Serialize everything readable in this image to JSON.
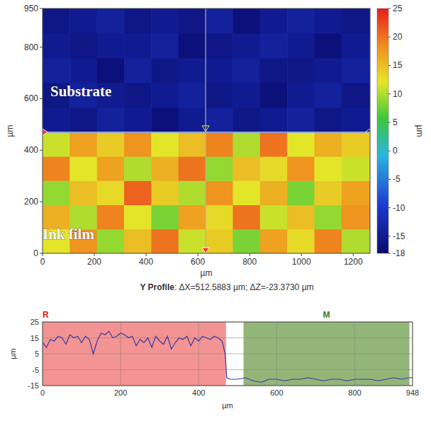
{
  "chart_data": [
    {
      "type": "heatmap",
      "xlabel": "µm",
      "ylabel": "µm",
      "xlim": [
        0,
        1265
      ],
      "ylim": [
        0,
        950
      ],
      "xticks": [
        0,
        200,
        400,
        600,
        800,
        1000,
        1200
      ],
      "yticks": [
        0,
        200,
        400,
        600,
        800,
        950
      ],
      "x_edges": [
        0,
        105,
        210,
        315,
        420,
        525,
        630,
        735,
        840,
        945,
        1050,
        1155,
        1265
      ],
      "y_edges": [
        0,
        94,
        188,
        282,
        376,
        470,
        566,
        662,
        758,
        854,
        950
      ],
      "cells": [
        [
          12,
          18,
          9,
          15,
          20,
          11,
          14,
          8,
          17,
          13,
          19,
          10
        ],
        [
          16,
          10,
          19,
          12,
          8,
          17,
          13,
          20,
          11,
          15,
          9,
          18
        ],
        [
          9,
          15,
          13,
          21,
          14,
          10,
          18,
          12,
          16,
          8,
          14,
          17
        ],
        [
          19,
          12,
          17,
          10,
          16,
          20,
          9,
          15,
          13,
          18,
          12,
          11
        ],
        [
          11,
          17,
          14,
          18,
          12,
          15,
          19,
          10,
          20,
          12,
          16,
          14
        ],
        [
          -15,
          -16,
          -14,
          -15,
          -17,
          -15,
          -14,
          -16,
          -15,
          -14,
          -16,
          -15
        ],
        [
          -16,
          -14,
          -15,
          -16,
          -15,
          -14,
          -16,
          -15,
          -17,
          -15,
          -14,
          -16
        ],
        [
          -14,
          -15,
          -17,
          -14,
          -16,
          -15,
          -15,
          -14,
          -16,
          -16,
          -15,
          -14
        ],
        [
          -15,
          -16,
          -15,
          -15,
          -14,
          -17,
          -16,
          -15,
          -14,
          -15,
          -17,
          -15
        ],
        [
          -16,
          -15,
          -14,
          -16,
          -15,
          -16,
          -14,
          -17,
          -15,
          -14,
          -15,
          -16
        ]
      ],
      "colorbar_label": "µm",
      "colorbar_range": [
        -18,
        25
      ],
      "colorbar_ticks": [
        25,
        20,
        15,
        10,
        5,
        0,
        -5,
        -10,
        -15,
        -18
      ],
      "profile_x": 630,
      "boundary_y": 470,
      "annotations": [
        {
          "text": "Substrate",
          "x": 30,
          "y": 610
        },
        {
          "text": "Ink film",
          "x": 0,
          "y": 55
        }
      ],
      "grid": false
    },
    {
      "type": "line",
      "title": "Y Profile: ΔX=512.5883 µm; ΔZ=-23.3730 µm",
      "xlabel": "µm",
      "ylabel": "µm",
      "xlim": [
        0,
        948
      ],
      "ylim": [
        -15,
        25
      ],
      "xticks": [
        0,
        200,
        400,
        600,
        800,
        948
      ],
      "yticks": [
        25,
        15,
        5,
        -5,
        -15
      ],
      "grid": true,
      "color": "#3a3aa0",
      "regions": [
        {
          "label": "R",
          "range": [
            0,
            470
          ],
          "color": "#f28080"
        },
        {
          "label": "M",
          "range": [
            515,
            940
          ],
          "color": "#7fa860"
        }
      ],
      "x": [
        0,
        10,
        20,
        30,
        40,
        50,
        60,
        70,
        80,
        90,
        100,
        110,
        120,
        130,
        140,
        150,
        160,
        170,
        180,
        190,
        200,
        210,
        220,
        230,
        240,
        250,
        260,
        270,
        280,
        290,
        300,
        310,
        320,
        330,
        340,
        350,
        360,
        370,
        380,
        390,
        400,
        410,
        420,
        430,
        440,
        450,
        460,
        468,
        472,
        480,
        500,
        520,
        540,
        560,
        580,
        600,
        620,
        640,
        660,
        680,
        700,
        720,
        740,
        760,
        780,
        800,
        820,
        840,
        860,
        880,
        900,
        920,
        940,
        948
      ],
      "values": [
        12,
        9,
        14,
        13,
        16,
        15,
        11,
        17,
        15,
        16,
        12,
        16,
        14,
        5,
        13,
        18,
        17,
        19,
        15,
        16,
        18,
        17,
        15,
        16,
        10,
        14,
        12,
        15,
        9,
        16,
        13,
        11,
        16,
        8,
        12,
        15,
        14,
        16,
        10,
        15,
        13,
        16,
        15,
        14,
        16,
        15,
        13,
        5,
        -10,
        -11,
        -11,
        -10,
        -12,
        -13,
        -11,
        -11,
        -12,
        -11,
        -11,
        -10,
        -11,
        -12,
        -11,
        -11,
        -12,
        -11,
        -11,
        -11,
        -12,
        -11,
        -10,
        -11,
        -10,
        -10
      ]
    }
  ]
}
